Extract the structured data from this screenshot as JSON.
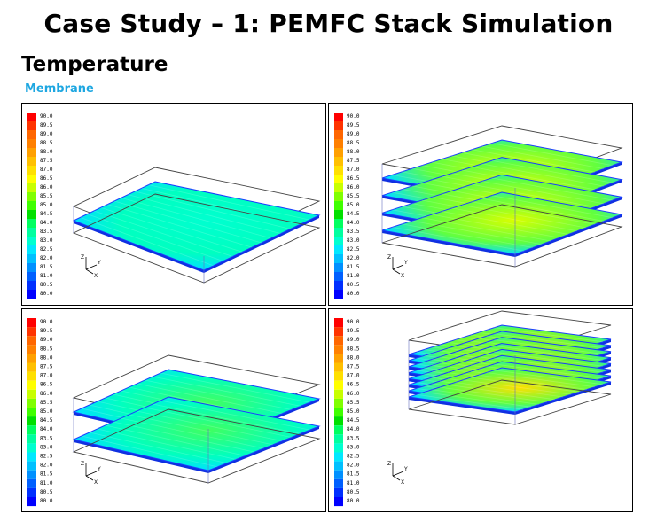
{
  "title": "Case Study – 1: PEMFC Stack Simulation",
  "subtitle": "Temperature",
  "section_label": "Membrane",
  "colorbar": {
    "labels": [
      "90.0",
      "89.5",
      "89.0",
      "88.5",
      "88.0",
      "87.5",
      "87.0",
      "86.5",
      "86.0",
      "85.5",
      "85.0",
      "84.5",
      "84.0",
      "83.5",
      "83.0",
      "82.5",
      "82.0",
      "81.5",
      "81.0",
      "80.5",
      "80.0"
    ],
    "colors": [
      "#ff0000",
      "#ff3300",
      "#ff6600",
      "#ff8000",
      "#ffa000",
      "#ffc000",
      "#ffe000",
      "#ffff00",
      "#c8ff00",
      "#80ff00",
      "#40ff00",
      "#00e000",
      "#00ff60",
      "#00ffa0",
      "#00ffd0",
      "#00e8ff",
      "#00c0ff",
      "#0090ff",
      "#0060ff",
      "#0030ff",
      "#0000ff"
    ]
  },
  "axes": {
    "z": "Z",
    "y": "Y",
    "x": "X"
  },
  "panels": [
    {
      "layers": 1,
      "hot": 0.0
    },
    {
      "layers": 4,
      "hot": 0.55
    },
    {
      "layers": 2,
      "hot": 0.15
    },
    {
      "layers": 8,
      "hot": 0.75
    }
  ]
}
